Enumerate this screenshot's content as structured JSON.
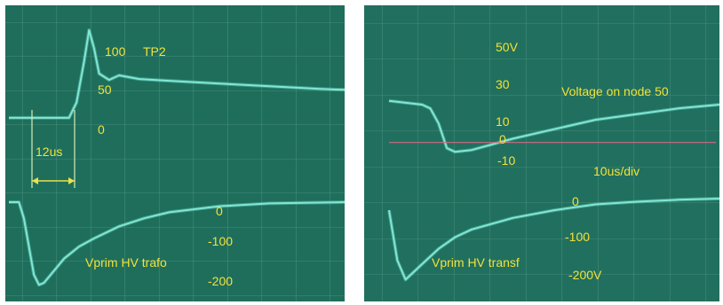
{
  "chart_data": [
    {
      "type": "line",
      "panel": "left",
      "x_unit": "us",
      "grid": true,
      "colors": {
        "screen": "#1f6e5c",
        "grid": "#5b9e8c",
        "trace": "#7fe8d4",
        "text": "#f2e23a",
        "ref": "#d4d4ee"
      },
      "annotations": {
        "top_scale": [
          "100",
          "50",
          "0"
        ],
        "top_label": "TP2",
        "bottom_scale": [
          "0",
          "-100",
          "-200"
        ],
        "bottom_label": "Vprim HV trafo",
        "marker_label": "12us"
      },
      "series": [
        {
          "x": [
            -12,
            0,
            1.5,
            3,
            4,
            5,
            6,
            8,
            10,
            14,
            20,
            30,
            40,
            50,
            55
          ],
          "y": [
            3,
            3,
            20,
            65,
            100,
            80,
            52,
            45,
            50,
            46,
            44,
            41,
            38,
            35,
            34
          ]
        },
        {
          "x": [
            -12,
            -10,
            -9,
            -7,
            -6,
            -5,
            -3,
            -1,
            2,
            5,
            10,
            15,
            20,
            30,
            40,
            55
          ],
          "y": [
            0,
            0,
            -40,
            -180,
            -205,
            -200,
            -170,
            -140,
            -110,
            -90,
            -60,
            -40,
            -25,
            -10,
            -3,
            0
          ]
        }
      ],
      "ref_line": {
        "y": 0
      }
    },
    {
      "type": "line",
      "panel": "right",
      "x_unit": "us",
      "grid": true,
      "colors": {
        "screen": "#216f5e",
        "grid": "#5b9e8c",
        "trace": "#7fe8d4",
        "text": "#f2e23a",
        "ref": "#d06a84"
      },
      "annotations": {
        "top_scale": [
          "50V",
          "30",
          "10",
          "0",
          "-10"
        ],
        "top_label": "Voltage on node 50",
        "time_base": "10us/div",
        "bottom_scale": [
          "0",
          "-100",
          "-200V"
        ],
        "bottom_label": "Vprim HV transf"
      },
      "series": [
        {
          "x": [
            0,
            8,
            10,
            12,
            14,
            16,
            20,
            25,
            30,
            40,
            50,
            60,
            70,
            80
          ],
          "y": [
            22,
            20,
            18,
            10,
            -3,
            -5,
            -4,
            -1,
            2,
            7,
            12,
            15,
            18,
            20
          ]
        },
        {
          "x": [
            0,
            2,
            4,
            8,
            12,
            16,
            20,
            30,
            40,
            50,
            60,
            70,
            80
          ],
          "y": [
            -30,
            -160,
            -210,
            -170,
            -130,
            -100,
            -80,
            -50,
            -30,
            -15,
            -8,
            -3,
            0
          ]
        }
      ],
      "ref_line": {
        "y": 0
      }
    }
  ]
}
